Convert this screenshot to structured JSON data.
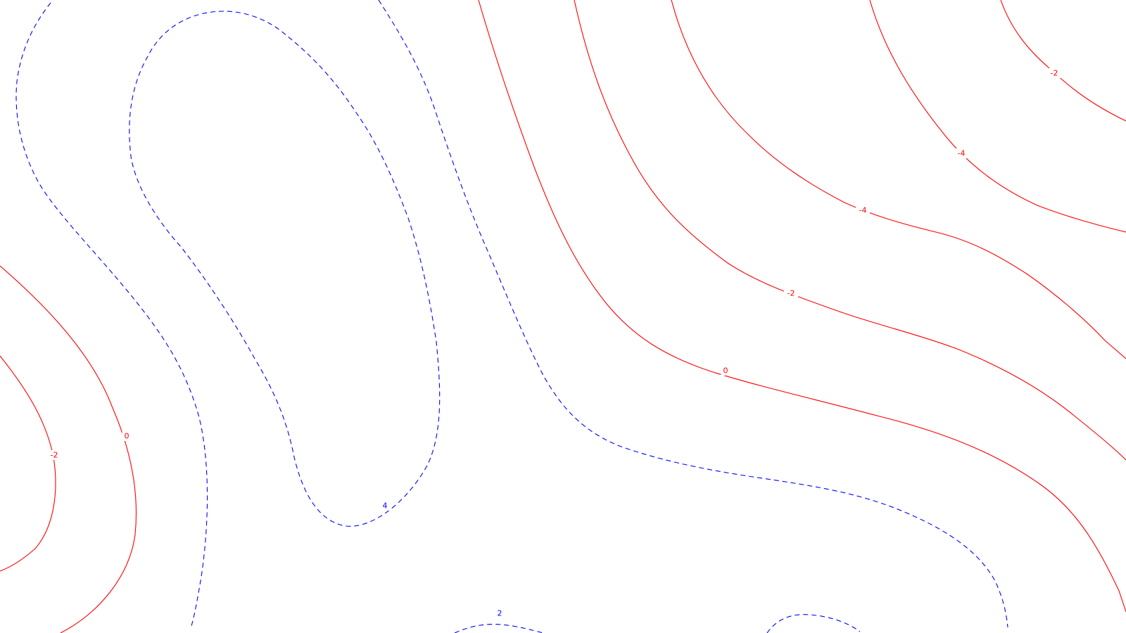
{
  "chart_data": {
    "type": "contour",
    "title": "",
    "xlabel": "",
    "ylabel": "",
    "grid": false,
    "legend": "none",
    "styles": {
      "positive": {
        "color": "#0000ff",
        "dash": "dashed"
      },
      "negative": {
        "color": "#ff0000",
        "dash": "solid"
      }
    },
    "contours": [
      {
        "id": "blue-2-left",
        "level": 2,
        "sign": "positive",
        "labels": []
      },
      {
        "id": "blue-4-loop",
        "level": 4,
        "sign": "positive",
        "labels": [
          "4"
        ]
      },
      {
        "id": "blue-2-diagonal",
        "level": 2,
        "sign": "positive",
        "labels": []
      },
      {
        "id": "blue-2-bottom-center",
        "level": 2,
        "sign": "positive",
        "labels": [
          "2"
        ]
      },
      {
        "id": "blue-2-bottom-right",
        "level": 2,
        "sign": "positive",
        "labels": []
      },
      {
        "id": "red-0-left",
        "level": 0,
        "sign": "negative",
        "labels": [
          "0"
        ]
      },
      {
        "id": "red-m2-left",
        "level": -2,
        "sign": "negative",
        "labels": [
          "-2"
        ]
      },
      {
        "id": "red-0-main",
        "level": 0,
        "sign": "negative",
        "labels": [
          "0"
        ]
      },
      {
        "id": "red-m2-main",
        "level": -2,
        "sign": "negative",
        "labels": [
          "-2"
        ]
      },
      {
        "id": "red-m4-main",
        "level": -4,
        "sign": "negative",
        "labels": [
          "-4"
        ]
      },
      {
        "id": "red-m4-upper",
        "level": -4,
        "sign": "negative",
        "labels": [
          "-4"
        ]
      },
      {
        "id": "red-m2-corner",
        "level": -2,
        "sign": "negative",
        "labels": [
          "-2"
        ]
      }
    ]
  }
}
